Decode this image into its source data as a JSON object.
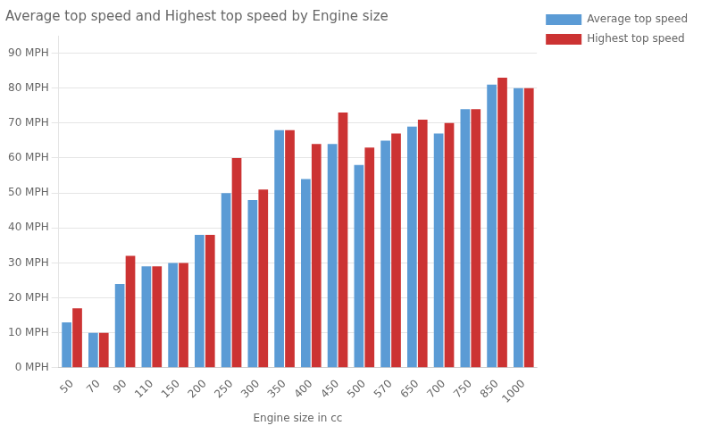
{
  "chart_data": {
    "type": "bar",
    "title": "Average top speed and Highest top speed by Engine size",
    "xlabel": "Engine size in cc",
    "categories": [
      "50",
      "70",
      "90",
      "110",
      "150",
      "200",
      "250",
      "300",
      "350",
      "400",
      "450",
      "500",
      "570",
      "650",
      "700",
      "750",
      "850",
      "1000"
    ],
    "series": [
      {
        "name": "Average top speed",
        "color": "#5B9BD5",
        "values": [
          13,
          10,
          24,
          29,
          30,
          38,
          50,
          48,
          68,
          54,
          64,
          58,
          65,
          69,
          67,
          74,
          81,
          80
        ]
      },
      {
        "name": "Highest top speed",
        "color": "#CC3333",
        "values": [
          17,
          10,
          32,
          29,
          30,
          38,
          60,
          51,
          68,
          64,
          73,
          63,
          67,
          71,
          70,
          74,
          83,
          80
        ]
      }
    ],
    "ylim": [
      0,
      95
    ],
    "yticks": [
      {
        "value": 0,
        "label": "0 MPH"
      },
      {
        "value": 10,
        "label": "10 MPH"
      },
      {
        "value": 20,
        "label": "20 MPH"
      },
      {
        "value": 30,
        "label": "30 MPH"
      },
      {
        "value": 40,
        "label": "40 MPH"
      },
      {
        "value": 50,
        "label": "50 MPH"
      },
      {
        "value": 60,
        "label": "60 MPH"
      },
      {
        "value": 70,
        "label": "70 MPH"
      },
      {
        "value": 80,
        "label": "80 MPH"
      },
      {
        "value": 90,
        "label": "90 MPH"
      }
    ],
    "grid": true,
    "legend": "upper right"
  }
}
